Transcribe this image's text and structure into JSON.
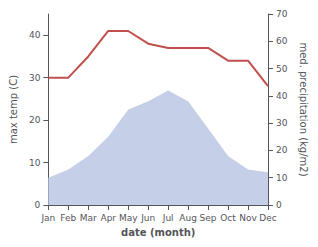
{
  "chart_data": {
    "type": "line",
    "categories": [
      "Jan",
      "Feb",
      "Mar",
      "Apr",
      "May",
      "Jun",
      "Jul",
      "Aug",
      "Sep",
      "Oct",
      "Nov",
      "Dec"
    ],
    "xlabel": "date (month)",
    "ylabel": "max temp (C)",
    "y2label": "med. precipitation (kg/m2)",
    "series": [
      {
        "type": "area",
        "axis": "y2",
        "color": "#c5cfe8",
        "values": [
          10,
          13,
          18,
          25,
          35,
          38,
          42,
          38,
          28,
          18,
          13,
          12
        ]
      },
      {
        "type": "line",
        "axis": "y",
        "color": "#c0504d",
        "values": [
          30,
          30,
          35,
          41,
          41,
          38,
          37,
          37,
          37,
          34,
          34,
          28
        ]
      }
    ],
    "ylim": [
      0,
      45
    ],
    "yticks": [
      0,
      10,
      20,
      30,
      40
    ],
    "y2lim": [
      0,
      70
    ],
    "y2ticks": [
      0,
      10,
      20,
      30,
      40,
      50,
      60,
      70
    ],
    "grid": false
  }
}
